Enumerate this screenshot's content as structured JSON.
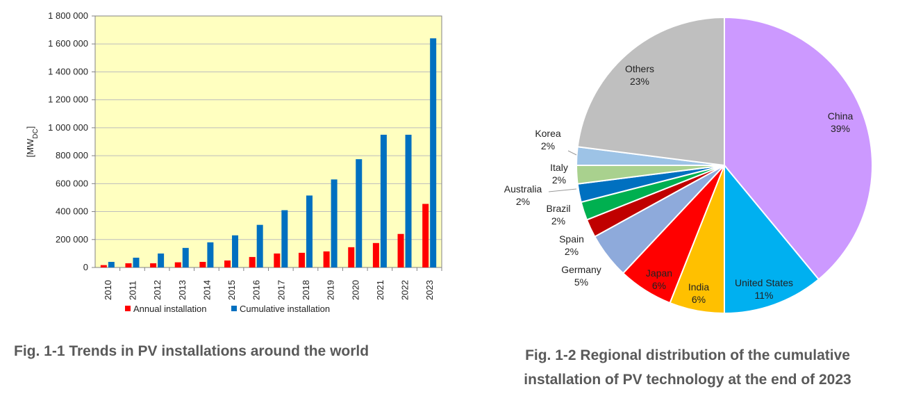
{
  "chart_data": [
    {
      "type": "bar",
      "ylabel": "[MWDC]",
      "ylabel_main": "[MW",
      "ylabel_sub": "DC",
      "ylabel_end": "]",
      "ylim": [
        0,
        1800000
      ],
      "yticks": [
        "0",
        "200 000",
        "400 000",
        "600 000",
        "800 000",
        "1 000 000",
        "1 200 000",
        "1 400 000",
        "1 600 000",
        "1 800 000"
      ],
      "categories": [
        "2010",
        "2011",
        "2012",
        "2013",
        "2014",
        "2015",
        "2016",
        "2017",
        "2018",
        "2019",
        "2020",
        "2021",
        "2022",
        "2023"
      ],
      "series": [
        {
          "name": "Annual installation",
          "color": "#ff0000",
          "values": [
            17000,
            30000,
            30000,
            37000,
            40000,
            50000,
            75000,
            100000,
            105000,
            115000,
            145000,
            175000,
            240000,
            455000
          ]
        },
        {
          "name": "Cumulative installation",
          "color": "#0070c0",
          "values": [
            40000,
            70000,
            100000,
            140000,
            180000,
            230000,
            305000,
            410000,
            515000,
            630000,
            775000,
            950000,
            950000,
            1640000
          ]
        }
      ],
      "plot_background": "#ffffc0",
      "grid": true,
      "legend_position": "bottom"
    },
    {
      "type": "pie",
      "slices": [
        {
          "name": "China",
          "pct_label": "39%",
          "value": 39,
          "color": "#cc99ff"
        },
        {
          "name": "United States",
          "pct_label": "11%",
          "value": 11,
          "color": "#00b0f0"
        },
        {
          "name": "India",
          "pct_label": "6%",
          "value": 6,
          "color": "#ffc000"
        },
        {
          "name": "Japan",
          "pct_label": "6%",
          "value": 6,
          "color": "#ff0000"
        },
        {
          "name": "Germany",
          "pct_label": "5%",
          "value": 5,
          "color": "#8eaadb"
        },
        {
          "name": "Spain",
          "pct_label": "2%",
          "value": 2,
          "color": "#c00000"
        },
        {
          "name": "Brazil",
          "pct_label": "2%",
          "value": 2,
          "color": "#00b050"
        },
        {
          "name": "Australia",
          "pct_label": "2%",
          "value": 2,
          "color": "#0070c0"
        },
        {
          "name": "Italy",
          "pct_label": "2%",
          "value": 2,
          "color": "#a9d18e"
        },
        {
          "name": "Korea",
          "pct_label": "2%",
          "value": 2,
          "color": "#9dc3e6"
        },
        {
          "name": "Others",
          "pct_label": "23%",
          "value": 23,
          "color": "#bfbfbf"
        }
      ]
    }
  ],
  "captions": {
    "fig1": "Fig. 1-1 Trends in PV installations around the world",
    "fig2_line1": "Fig. 1-2 Regional distribution of the cumulative",
    "fig2_line2": "installation of PV technology at the end of 2023"
  }
}
